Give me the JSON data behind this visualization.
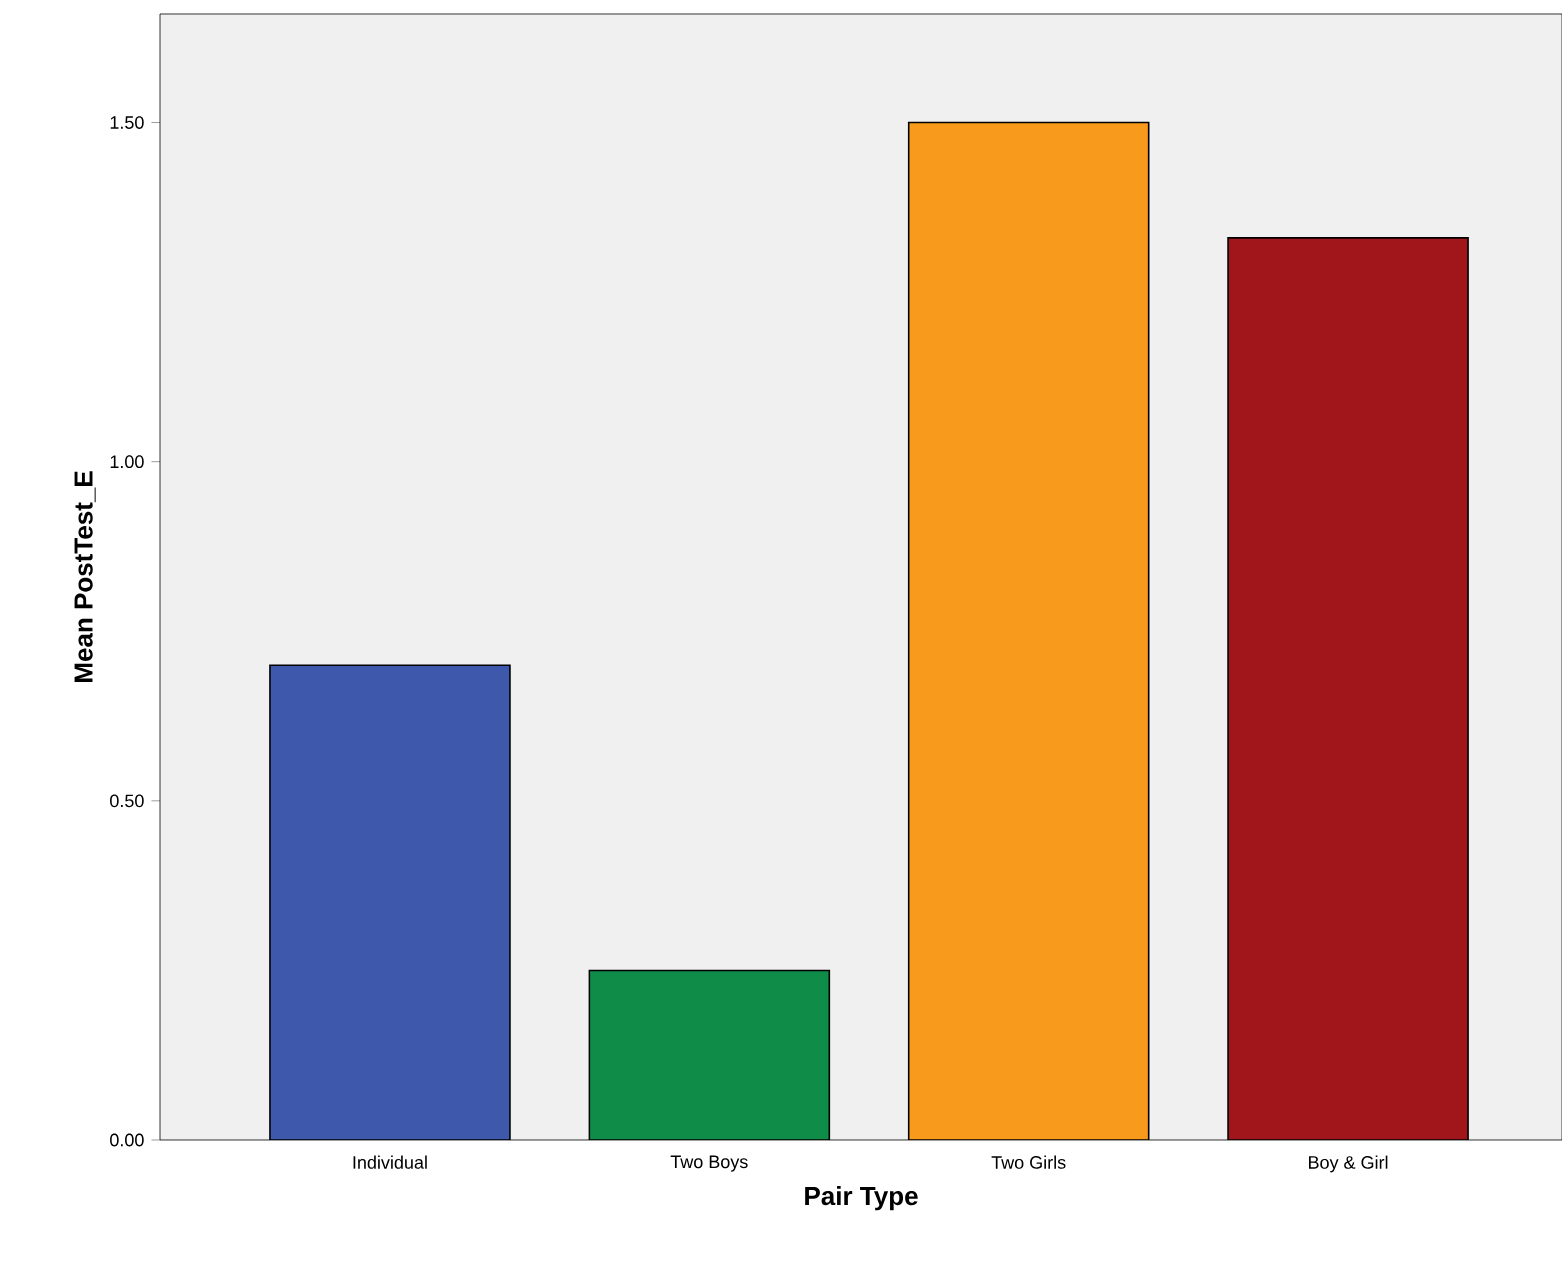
{
  "chart_data": {
    "type": "bar",
    "xlabel": "Pair Type",
    "ylabel": "Mean PostTest_E",
    "categories": [
      "Individual",
      "Two Boys",
      "Two Girls",
      "Boy & Girl"
    ],
    "values": [
      0.7,
      0.25,
      1.5,
      1.33
    ],
    "colors": [
      "#3e58ac",
      "#0f8c48",
      "#f89a1c",
      "#a0161b"
    ],
    "ylim": [
      0,
      1.66
    ],
    "yticks": [
      {
        "value": 0,
        "label": "0.00"
      },
      {
        "value": 0.5,
        "label": "0.50"
      },
      {
        "value": 1.0,
        "label": "1.00"
      },
      {
        "value": 1.5,
        "label": "1.50"
      }
    ],
    "grid": false
  }
}
